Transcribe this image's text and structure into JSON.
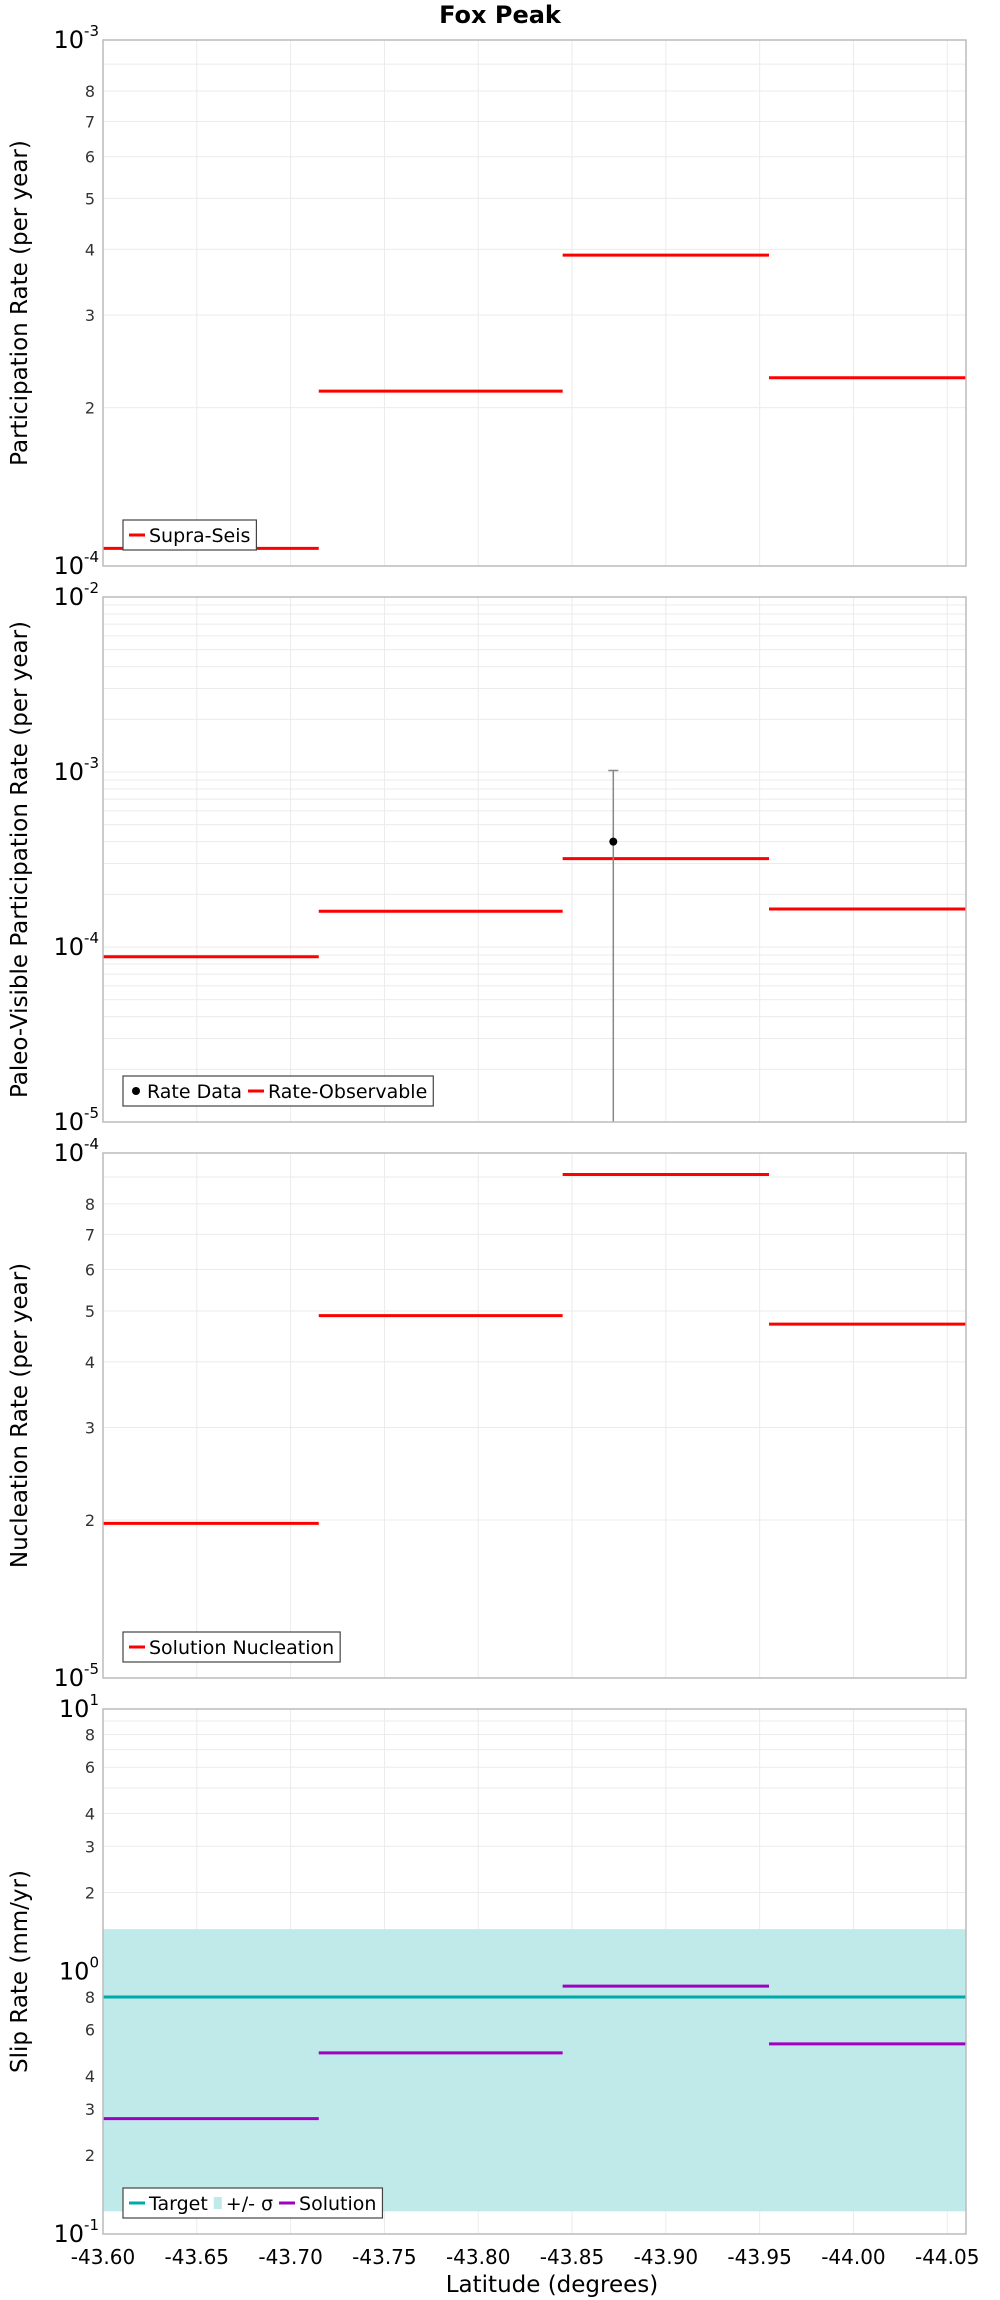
{
  "title": "Fox Peak",
  "xlabel": "Latitude (degrees)",
  "x_ticks": [
    "-43.60",
    "-43.65",
    "-43.70",
    "-43.75",
    "-43.80",
    "-43.85",
    "-43.90",
    "-43.95",
    "-44.00",
    "-44.05"
  ],
  "colors": {
    "red": "#ff0000",
    "teal": "#00aaaa",
    "band": "#c0eaea",
    "magenta": "#a000c0",
    "black": "#000000",
    "grid": "#ebebeb"
  },
  "chart_data": [
    {
      "type": "line",
      "ylabel": "Participation Rate (per year)",
      "yscale": "log",
      "ylim": [
        0.0001,
        0.001
      ],
      "xlim": [
        -43.6,
        -44.06
      ],
      "major_ticks": [
        {
          "v": 0.0001,
          "base": "10",
          "exp": "-4"
        },
        {
          "v": 0.001,
          "base": "10",
          "exp": "-3"
        }
      ],
      "minor_labels": [
        "2",
        "3",
        "4",
        "5",
        "6",
        "7",
        "8"
      ],
      "minor_mult": 0.0001,
      "segments": [
        {
          "x0": -43.6,
          "x1": -43.715,
          "y": 0.000108
        },
        {
          "x0": -43.715,
          "x1": -43.845,
          "y": 0.000215
        },
        {
          "x0": -43.845,
          "x1": -43.955,
          "y": 0.00039
        },
        {
          "x0": -43.955,
          "x1": -44.06,
          "y": 0.000228
        }
      ],
      "legend": [
        {
          "label": "Supra-Seis",
          "kind": "line",
          "color": "#ff0000"
        }
      ]
    },
    {
      "type": "line",
      "ylabel": "Paleo-Visible Participation Rate (per year)",
      "yscale": "log",
      "ylim": [
        1e-05,
        0.01
      ],
      "xlim": [
        -43.6,
        -44.06
      ],
      "major_ticks": [
        {
          "v": 1e-05,
          "base": "10",
          "exp": "-5"
        },
        {
          "v": 0.0001,
          "base": "10",
          "exp": "-4"
        },
        {
          "v": 0.001,
          "base": "10",
          "exp": "-3"
        },
        {
          "v": 0.01,
          "base": "10",
          "exp": "-2"
        }
      ],
      "minor_labels": [],
      "segments": [
        {
          "x0": -43.6,
          "x1": -43.715,
          "y": 8.8e-05
        },
        {
          "x0": -43.715,
          "x1": -43.845,
          "y": 0.00016
        },
        {
          "x0": -43.845,
          "x1": -43.955,
          "y": 0.00032
        },
        {
          "x0": -43.955,
          "x1": -44.06,
          "y": 0.000165
        }
      ],
      "points": [
        {
          "x": -43.872,
          "y": 0.0004,
          "ylow": 1e-05,
          "yhigh": 0.00102
        }
      ],
      "legend": [
        {
          "label": "Rate Data",
          "kind": "dot",
          "color": "#000000"
        },
        {
          "label": "Rate-Observable",
          "kind": "line",
          "color": "#ff0000"
        }
      ]
    },
    {
      "type": "line",
      "ylabel": "Nucleation Rate (per year)",
      "yscale": "log",
      "ylim": [
        1e-05,
        0.0001
      ],
      "xlim": [
        -43.6,
        -44.06
      ],
      "major_ticks": [
        {
          "v": 1e-05,
          "base": "10",
          "exp": "-5"
        },
        {
          "v": 0.0001,
          "base": "10",
          "exp": "-4"
        }
      ],
      "minor_labels": [
        "2",
        "3",
        "4",
        "5",
        "6",
        "7",
        "8"
      ],
      "minor_mult": 1e-05,
      "segments": [
        {
          "x0": -43.6,
          "x1": -43.715,
          "y": 1.97e-05
        },
        {
          "x0": -43.715,
          "x1": -43.845,
          "y": 4.9e-05
        },
        {
          "x0": -43.845,
          "x1": -43.955,
          "y": 9.1e-05
        },
        {
          "x0": -43.955,
          "x1": -44.06,
          "y": 4.72e-05
        }
      ],
      "legend": [
        {
          "label": "Solution Nucleation",
          "kind": "line",
          "color": "#ff0000"
        }
      ]
    },
    {
      "type": "line",
      "ylabel": "Slip Rate (mm/yr)",
      "yscale": "log",
      "ylim": [
        0.1,
        10
      ],
      "xlim": [
        -43.6,
        -44.06
      ],
      "major_ticks": [
        {
          "v": 0.1,
          "base": "10",
          "exp": "-1"
        },
        {
          "v": 1,
          "base": "10",
          "exp": "0"
        },
        {
          "v": 10,
          "base": "10",
          "exp": "1"
        }
      ],
      "minor_labels_abs": [
        {
          "v": 0.2,
          "label": "2"
        },
        {
          "v": 0.3,
          "label": "3"
        },
        {
          "v": 0.4,
          "label": "4"
        },
        {
          "v": 0.6,
          "label": "6"
        },
        {
          "v": 0.8,
          "label": "8"
        },
        {
          "v": 2,
          "label": "2"
        },
        {
          "v": 3,
          "label": "3"
        },
        {
          "v": 4,
          "label": "4"
        },
        {
          "v": 6,
          "label": "6"
        },
        {
          "v": 8,
          "label": "8"
        }
      ],
      "band": {
        "ylow": 0.122,
        "yhigh": 1.45
      },
      "target": 0.8,
      "segments": [
        {
          "x0": -43.6,
          "x1": -43.715,
          "y": 0.275
        },
        {
          "x0": -43.715,
          "x1": -43.845,
          "y": 0.49
        },
        {
          "x0": -43.845,
          "x1": -43.955,
          "y": 0.88
        },
        {
          "x0": -43.955,
          "x1": -44.06,
          "y": 0.53
        }
      ],
      "legend": [
        {
          "label": "Target",
          "kind": "line",
          "color": "#00aaaa"
        },
        {
          "label": "+/- σ",
          "kind": "box",
          "color": "#c0eaea"
        },
        {
          "label": "Solution",
          "kind": "line",
          "color": "#a000c0"
        }
      ]
    }
  ]
}
